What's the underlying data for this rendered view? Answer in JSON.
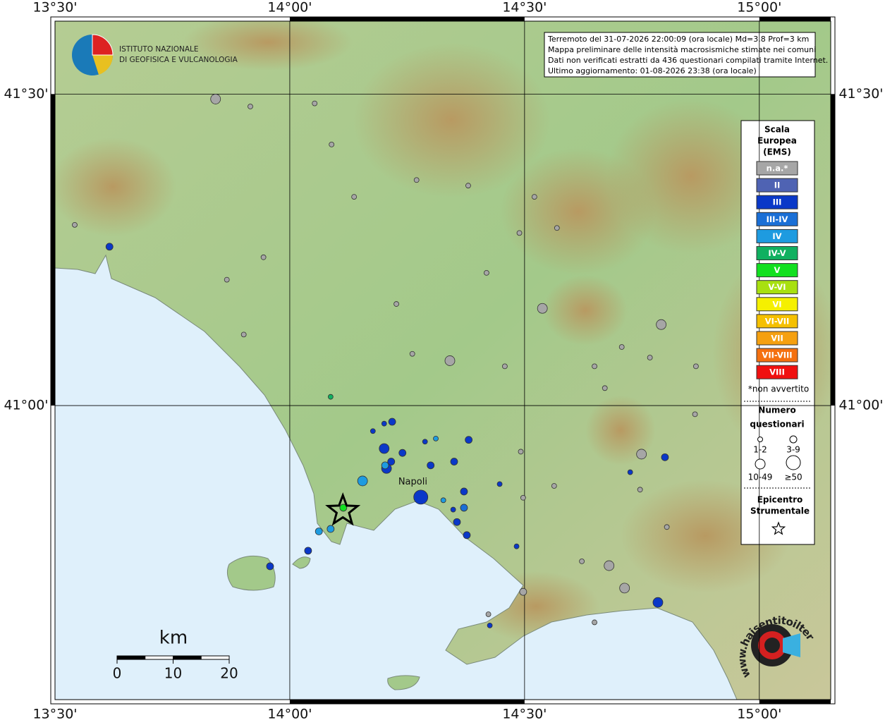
{
  "chart_data": {
    "type": "map",
    "logo": [
      "ISTITUTO NAZIONALE",
      "DI GEOFISICA E VULCANOLOGIA"
    ],
    "info": [
      "Terremoto del 31-07-2026 22:00:09 (ora locale) Md=3.8 Prof=3 km",
      "Mappa preliminare delle intensità macrosismiche stimate nei comuni",
      "Dati non verificati estratti da 436 questionari compilati tramite Internet.",
      "Ultimo aggiornamento: 01-08-2026 23:38 (ora locale)"
    ],
    "xlim": [
      13.5,
      15.152
    ],
    "ylim": [
      40.528,
      41.617
    ],
    "xticks": [
      {
        "value": 13.5,
        "label": "13°30'"
      },
      {
        "value": 14.0,
        "label": "14°00'"
      },
      {
        "value": 14.5,
        "label": "14°30'"
      },
      {
        "value": 15.0,
        "label": "15°00'"
      }
    ],
    "yticks": [
      {
        "value": 41.5,
        "label": "41°30'"
      },
      {
        "value": 41.0,
        "label": "41°00'"
      }
    ],
    "grid": true,
    "legend_title": [
      "Scala",
      "Europea",
      "(EMS)"
    ],
    "legend": [
      {
        "label": "n.a.*",
        "color": "#a6a6a6"
      },
      {
        "label": "II",
        "color": "#4f63b3"
      },
      {
        "label": "III",
        "color": "#0a38c8"
      },
      {
        "label": "III-IV",
        "color": "#1a6fd6"
      },
      {
        "label": "IV",
        "color": "#1e9be0"
      },
      {
        "label": "IV-V",
        "color": "#10b060"
      },
      {
        "label": "V",
        "color": "#12e020"
      },
      {
        "label": "V-VI",
        "color": "#a8e010"
      },
      {
        "label": "VI",
        "color": "#f5f000"
      },
      {
        "label": "VI-VII",
        "color": "#f5c000"
      },
      {
        "label": "VII",
        "color": "#f5a010"
      },
      {
        "label": "VII-VIII",
        "color": "#f57010"
      },
      {
        "label": "VIII",
        "color": "#f01010"
      }
    ],
    "legend_note": "*non avvertito",
    "size_title": [
      "Numero",
      "questionari"
    ],
    "size_classes": [
      "1-2",
      "3-9",
      "10-49",
      "≥50"
    ],
    "epicenter_title": [
      "Epicentro",
      "Strumentale"
    ],
    "epicenter": {
      "lon": 14.113,
      "lat": 40.831
    },
    "city": {
      "name": "Napoli",
      "lon": 14.262,
      "lat": 40.865
    },
    "scale_bar": {
      "unit": "km",
      "ticks": [
        0,
        10,
        20
      ]
    },
    "site": "www.haisentitoilterremoto.it",
    "points": [
      {
        "lon": 13.842,
        "lat": 41.492,
        "intensity": "n.a.*",
        "q": 2
      },
      {
        "lon": 13.916,
        "lat": 41.48,
        "intensity": "n.a.*",
        "q": 0
      },
      {
        "lon": 14.053,
        "lat": 41.485,
        "intensity": "n.a.*",
        "q": 0
      },
      {
        "lon": 14.089,
        "lat": 41.419,
        "intensity": "n.a.*",
        "q": 0
      },
      {
        "lon": 14.137,
        "lat": 41.335,
        "intensity": "n.a.*",
        "q": 0
      },
      {
        "lon": 14.27,
        "lat": 41.362,
        "intensity": "n.a.*",
        "q": 0
      },
      {
        "lon": 14.38,
        "lat": 41.353,
        "intensity": "n.a.*",
        "q": 0
      },
      {
        "lon": 14.521,
        "lat": 41.335,
        "intensity": "n.a.*",
        "q": 0
      },
      {
        "lon": 14.489,
        "lat": 41.277,
        "intensity": "n.a.*",
        "q": 0
      },
      {
        "lon": 14.569,
        "lat": 41.285,
        "intensity": "n.a.*",
        "q": 0
      },
      {
        "lon": 13.542,
        "lat": 41.29,
        "intensity": "n.a.*",
        "q": 0
      },
      {
        "lon": 13.944,
        "lat": 41.238,
        "intensity": "n.a.*",
        "q": 0
      },
      {
        "lon": 13.866,
        "lat": 41.202,
        "intensity": "n.a.*",
        "q": 0
      },
      {
        "lon": 14.419,
        "lat": 41.213,
        "intensity": "n.a.*",
        "q": 0
      },
      {
        "lon": 14.227,
        "lat": 41.163,
        "intensity": "n.a.*",
        "q": 0
      },
      {
        "lon": 14.538,
        "lat": 41.156,
        "intensity": "n.a.*",
        "q": 2
      },
      {
        "lon": 14.791,
        "lat": 41.13,
        "intensity": "n.a.*",
        "q": 2
      },
      {
        "lon": 13.902,
        "lat": 41.114,
        "intensity": "n.a.*",
        "q": 0
      },
      {
        "lon": 14.261,
        "lat": 41.083,
        "intensity": "n.a.*",
        "q": 0
      },
      {
        "lon": 14.341,
        "lat": 41.072,
        "intensity": "n.a.*",
        "q": 2
      },
      {
        "lon": 14.458,
        "lat": 41.063,
        "intensity": "n.a.*",
        "q": 0
      },
      {
        "lon": 14.649,
        "lat": 41.063,
        "intensity": "n.a.*",
        "q": 0
      },
      {
        "lon": 14.707,
        "lat": 41.094,
        "intensity": "n.a.*",
        "q": 0
      },
      {
        "lon": 14.767,
        "lat": 41.077,
        "intensity": "n.a.*",
        "q": 0
      },
      {
        "lon": 14.865,
        "lat": 41.063,
        "intensity": "n.a.*",
        "q": 0
      },
      {
        "lon": 14.671,
        "lat": 41.028,
        "intensity": "n.a.*",
        "q": 0
      },
      {
        "lon": 14.863,
        "lat": 40.986,
        "intensity": "n.a.*",
        "q": 0
      },
      {
        "lon": 14.749,
        "lat": 40.922,
        "intensity": "n.a.*",
        "q": 2
      },
      {
        "lon": 14.492,
        "lat": 40.926,
        "intensity": "n.a.*",
        "q": 0
      },
      {
        "lon": 14.563,
        "lat": 40.871,
        "intensity": "n.a.*",
        "q": 0
      },
      {
        "lon": 14.746,
        "lat": 40.865,
        "intensity": "n.a.*",
        "q": 0
      },
      {
        "lon": 14.497,
        "lat": 40.852,
        "intensity": "n.a.*",
        "q": 0
      },
      {
        "lon": 14.803,
        "lat": 40.805,
        "intensity": "n.a.*",
        "q": 0
      },
      {
        "lon": 14.622,
        "lat": 40.75,
        "intensity": "n.a.*",
        "q": 0
      },
      {
        "lon": 14.68,
        "lat": 40.743,
        "intensity": "n.a.*",
        "q": 2
      },
      {
        "lon": 14.713,
        "lat": 40.707,
        "intensity": "n.a.*",
        "q": 2
      },
      {
        "lon": 14.497,
        "lat": 40.701,
        "intensity": "n.a.*",
        "q": 1
      },
      {
        "lon": 14.649,
        "lat": 40.652,
        "intensity": "n.a.*",
        "q": 0
      },
      {
        "lon": 14.423,
        "lat": 40.665,
        "intensity": "n.a.*",
        "q": 0
      },
      {
        "lon": 13.616,
        "lat": 41.255,
        "intensity": "III",
        "q": 1
      },
      {
        "lon": 14.201,
        "lat": 40.971,
        "intensity": "III",
        "q": 0
      },
      {
        "lon": 14.218,
        "lat": 40.974,
        "intensity": "III",
        "q": 1
      },
      {
        "lon": 14.201,
        "lat": 40.931,
        "intensity": "III",
        "q": 2
      },
      {
        "lon": 14.206,
        "lat": 40.899,
        "intensity": "III",
        "q": 2
      },
      {
        "lon": 14.24,
        "lat": 40.924,
        "intensity": "III",
        "q": 1
      },
      {
        "lon": 14.216,
        "lat": 40.91,
        "intensity": "III",
        "q": 1
      },
      {
        "lon": 14.3,
        "lat": 40.904,
        "intensity": "III",
        "q": 1
      },
      {
        "lon": 14.35,
        "lat": 40.91,
        "intensity": "III",
        "q": 1
      },
      {
        "lon": 14.381,
        "lat": 40.945,
        "intensity": "III",
        "q": 1
      },
      {
        "lon": 14.371,
        "lat": 40.862,
        "intensity": "III",
        "q": 1
      },
      {
        "lon": 14.279,
        "lat": 40.853,
        "intensity": "III",
        "q": 3
      },
      {
        "lon": 14.288,
        "lat": 40.942,
        "intensity": "III",
        "q": 0
      },
      {
        "lon": 14.447,
        "lat": 40.874,
        "intensity": "III",
        "q": 0
      },
      {
        "lon": 14.348,
        "lat": 40.833,
        "intensity": "III",
        "q": 0
      },
      {
        "lon": 14.356,
        "lat": 40.813,
        "intensity": "III",
        "q": 1
      },
      {
        "lon": 14.377,
        "lat": 40.792,
        "intensity": "III",
        "q": 1
      },
      {
        "lon": 14.483,
        "lat": 40.774,
        "intensity": "III",
        "q": 0
      },
      {
        "lon": 14.426,
        "lat": 40.647,
        "intensity": "III",
        "q": 0
      },
      {
        "lon": 14.725,
        "lat": 40.893,
        "intensity": "III",
        "q": 0
      },
      {
        "lon": 14.799,
        "lat": 40.917,
        "intensity": "III",
        "q": 1
      },
      {
        "lon": 14.784,
        "lat": 40.684,
        "intensity": "III",
        "q": 2
      },
      {
        "lon": 14.039,
        "lat": 40.767,
        "intensity": "III",
        "q": 1
      },
      {
        "lon": 13.958,
        "lat": 40.742,
        "intensity": "III",
        "q": 1
      },
      {
        "lon": 14.177,
        "lat": 40.959,
        "intensity": "III",
        "q": 0
      },
      {
        "lon": 14.155,
        "lat": 40.879,
        "intensity": "IV",
        "q": 2
      },
      {
        "lon": 14.203,
        "lat": 40.904,
        "intensity": "IV",
        "q": 1
      },
      {
        "lon": 14.311,
        "lat": 40.947,
        "intensity": "IV",
        "q": 0
      },
      {
        "lon": 14.062,
        "lat": 40.798,
        "intensity": "IV",
        "q": 1
      },
      {
        "lon": 14.087,
        "lat": 40.802,
        "intensity": "IV",
        "q": 1
      },
      {
        "lon": 14.327,
        "lat": 40.848,
        "intensity": "IV",
        "q": 0
      },
      {
        "lon": 14.371,
        "lat": 40.836,
        "intensity": "III-IV",
        "q": 1
      },
      {
        "lon": 14.087,
        "lat": 41.014,
        "intensity": "IV-V",
        "q": 0
      },
      {
        "lon": 14.114,
        "lat": 40.836,
        "intensity": "V",
        "q": 1
      }
    ]
  }
}
